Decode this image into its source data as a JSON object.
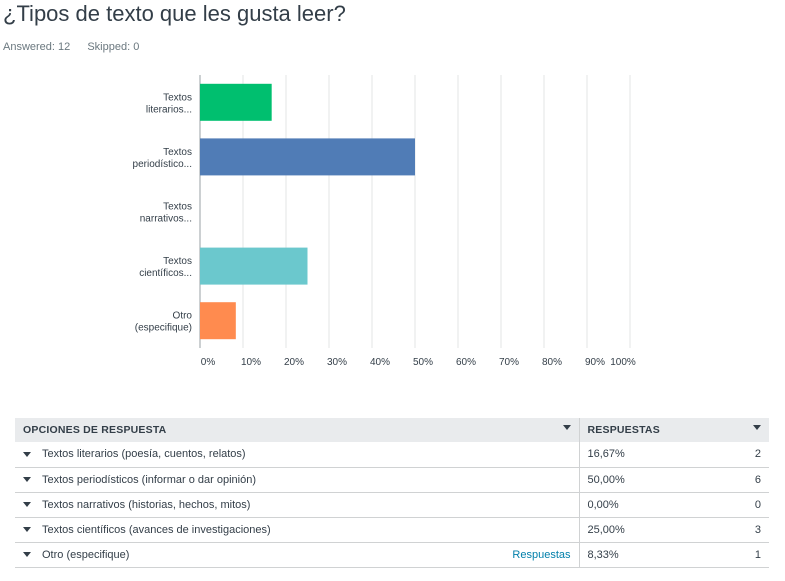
{
  "question": {
    "title": "¿Tipos de texto que les gusta leer?",
    "answered": "Answered: 12",
    "skipped": "Skipped: 0"
  },
  "chart_data": {
    "type": "bar",
    "orientation": "horizontal",
    "categories": [
      "Textos literarios...",
      "Textos periodístico...",
      "Textos narrativos...",
      "Textos científicos...",
      "Otro (especifique)"
    ],
    "category_lines": [
      [
        "Textos",
        "literarios..."
      ],
      [
        "Textos",
        "periodístico..."
      ],
      [
        "Textos",
        "narrativos..."
      ],
      [
        "Textos",
        "científicos..."
      ],
      [
        "Otro",
        "(especifique)"
      ]
    ],
    "values": [
      16.67,
      50.0,
      0.0,
      25.0,
      8.33
    ],
    "colors": [
      "#00bf6f",
      "#507cb6",
      "#f9be00",
      "#6bc8cd",
      "#ff8b4f"
    ],
    "xlim": [
      0,
      100
    ],
    "xticks": [
      "0%",
      "10%",
      "20%",
      "30%",
      "40%",
      "50%",
      "60%",
      "70%",
      "80%",
      "90%",
      "100%"
    ],
    "grid": true
  },
  "table": {
    "header_option": "OPCIONES DE RESPUESTA",
    "header_responses": "RESPUESTAS",
    "rows": [
      {
        "option": "Textos literarios (poesía, cuentos, relatos)",
        "percent": "16,67%",
        "count": "2",
        "link": ""
      },
      {
        "option": "Textos periodísticos (informar o dar opinión)",
        "percent": "50,00%",
        "count": "6",
        "link": ""
      },
      {
        "option": "Textos narrativos (historias, hechos, mitos)",
        "percent": "0,00%",
        "count": "0",
        "link": ""
      },
      {
        "option": "Textos científicos (avances de investigaciones)",
        "percent": "25,00%",
        "count": "3",
        "link": ""
      },
      {
        "option": "Otro (especifique)",
        "percent": "8,33%",
        "count": "1",
        "link": "Respuestas"
      }
    ]
  }
}
